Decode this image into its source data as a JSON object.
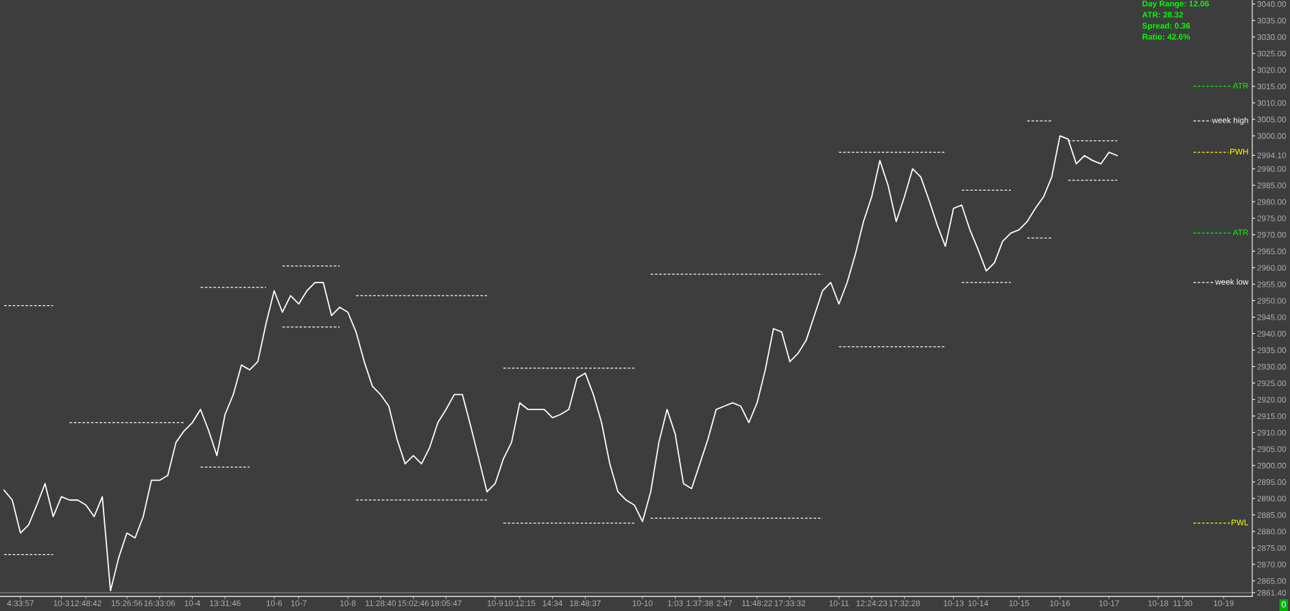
{
  "chart_data": {
    "type": "line",
    "categories": [
      null,
      null,
      "4:33:57",
      null,
      null,
      null,
      null,
      "10-3",
      null,
      null,
      "12:48:42",
      null,
      null,
      null,
      null,
      "15:26:56",
      null,
      null,
      null,
      "16:33:06",
      null,
      null,
      null,
      "10-4",
      null,
      null,
      null,
      "13:31:46",
      null,
      null,
      null,
      null,
      null,
      "10-6",
      null,
      null,
      "10-7",
      null,
      null,
      null,
      null,
      null,
      "10-8",
      null,
      null,
      null,
      "11:28:40",
      null,
      null,
      null,
      "15:02:46",
      null,
      null,
      null,
      "18:05:47",
      null,
      null,
      null,
      null,
      null,
      "10-9",
      null,
      null,
      "10:12:15",
      null,
      null,
      null,
      "14:34",
      null,
      null,
      null,
      "18:48:37",
      null,
      null,
      null,
      null,
      null,
      null,
      "10-10",
      null,
      null,
      null,
      "1:03",
      null,
      null,
      "1:37:38",
      null,
      null,
      "2:47",
      null,
      null,
      null,
      "11:48:22",
      null,
      null,
      null,
      "17:33:32",
      null,
      null,
      null,
      null,
      null,
      "10-11",
      null,
      null,
      null,
      "12:24:23",
      null,
      null,
      null,
      "17:32:28",
      null,
      null,
      null,
      null,
      null,
      "10-13",
      null,
      null,
      "10-14",
      null,
      null,
      null,
      null,
      "10-15",
      null,
      null,
      null,
      null,
      "10-16",
      null,
      null,
      null,
      null,
      null,
      "10-17",
      null,
      null,
      null,
      null,
      null,
      "10-18",
      null,
      null,
      "11:30",
      null,
      null,
      null,
      null,
      "10-19",
      null,
      null,
      null
    ],
    "series": [
      {
        "color": "#ffffff",
        "line_style": "solid",
        "values": [
          2892.5,
          2889.5,
          2879.5,
          2882,
          2888,
          2894.5,
          2884.5,
          2890.5,
          2889.5,
          2889.5,
          2888,
          2884.5,
          2890.5,
          2862,
          2872,
          2879.5,
          2878,
          2884.5,
          2895.5,
          2895.5,
          2897,
          2907,
          2910.5,
          2913,
          2917,
          2910.5,
          2903,
          2915.5,
          2921.5,
          2930.5,
          2929,
          2931.5,
          2943,
          2953,
          2946.5,
          2951.5,
          2949,
          2953,
          2955.5,
          2955.5,
          2945.5,
          2948,
          2946.5,
          2940.5,
          2931.5,
          2924,
          2921.5,
          2918,
          2908,
          2900.5,
          2903,
          2900.5,
          2905.5,
          2913,
          2917,
          2921.5,
          2921.5,
          2912,
          2902,
          2892,
          2894.5,
          2902,
          2907,
          2919,
          2917,
          2917,
          2917,
          2914.5,
          2915.5,
          2917,
          2926.5,
          2928,
          2921.5,
          2913,
          2900.5,
          2892,
          2889.5,
          2888,
          2883,
          2892,
          2907,
          2917,
          2909.5,
          2894.5,
          2893,
          2900.5,
          2908,
          2917,
          2918,
          2919,
          2918,
          2913,
          2919,
          2929,
          2941.5,
          2940.5,
          2931.5,
          2934,
          2938,
          2945.5,
          2953,
          2955.5,
          2949,
          2955.5,
          2964,
          2974,
          2981.5,
          2992.5,
          2985,
          2974,
          2981.5,
          2990,
          2987.5,
          2980.5,
          2973,
          2966.5,
          2978,
          2979,
          2971.5,
          2965.5,
          2959,
          2961.5,
          2968,
          2970.5,
          2971.5,
          2974,
          2978,
          2981.5,
          2987.5,
          3000,
          2999,
          2991.5,
          2994,
          2992.5,
          2991.5,
          2995,
          2994,
          null,
          null,
          null,
          null,
          null,
          null,
          null,
          null,
          null,
          null,
          null,
          null,
          null,
          null,
          null,
          null
        ]
      },
      {
        "color": "#ffffff",
        "line_style": "dashed",
        "values": [
          2948.5,
          2948.5,
          2948.5,
          2948.5,
          2948.5,
          2948.5,
          2948.5,
          null,
          2913,
          2913,
          2913,
          2913,
          2913,
          2913,
          2913,
          2913,
          2913,
          2913,
          2913,
          2913,
          2913,
          2913,
          2913,
          null,
          2954,
          2954,
          2954,
          2954,
          2954,
          2954,
          2954,
          2954,
          2954,
          null,
          2960.5,
          2960.5,
          2960.5,
          2960.5,
          2960.5,
          2960.5,
          2960.5,
          2960.5,
          null,
          2951.5,
          2951.5,
          2951.5,
          2951.5,
          2951.5,
          2951.5,
          2951.5,
          2951.5,
          2951.5,
          2951.5,
          2951.5,
          2951.5,
          2951.5,
          2951.5,
          2951.5,
          2951.5,
          2951.5,
          null,
          2929.5,
          2929.5,
          2929.5,
          2929.5,
          2929.5,
          2929.5,
          2929.5,
          2929.5,
          2929.5,
          2929.5,
          2929.5,
          2929.5,
          2929.5,
          2929.5,
          2929.5,
          2929.5,
          2929.5,
          null,
          2958,
          2958,
          2958,
          2958,
          2958,
          2958,
          2958,
          2958,
          2958,
          2958,
          2958,
          2958,
          2958,
          2958,
          2958,
          2958,
          2958,
          2958,
          2958,
          2958,
          2958,
          2958,
          null,
          2995,
          2995,
          2995,
          2995,
          2995,
          2995,
          2995,
          2995,
          2995,
          2995,
          2995,
          2995,
          2995,
          2995,
          null,
          2983.5,
          2983.5,
          2983.5,
          2983.5,
          2983.5,
          2983.5,
          2983.5,
          null,
          3004.5,
          3004.5,
          3004.5,
          3004.5,
          null,
          2998.5,
          2998.5,
          2998.5,
          2998.5,
          2998.5,
          2998.5,
          2998.5,
          null,
          null,
          null,
          null,
          null,
          null,
          null,
          null,
          null,
          null,
          null,
          null,
          null,
          null,
          null,
          null
        ]
      },
      {
        "color": "#ffffff",
        "line_style": "dashed",
        "values": [
          2873,
          2873,
          2873,
          2873,
          2873,
          2873,
          2873,
          null,
          null,
          null,
          null,
          null,
          null,
          null,
          null,
          null,
          null,
          null,
          null,
          null,
          null,
          null,
          null,
          null,
          2899.5,
          2899.5,
          2899.5,
          2899.5,
          2899.5,
          2899.5,
          2899.5,
          null,
          null,
          null,
          2942,
          2942,
          2942,
          2942,
          2942,
          2942,
          2942,
          2942,
          null,
          2889.5,
          2889.5,
          2889.5,
          2889.5,
          2889.5,
          2889.5,
          2889.5,
          2889.5,
          2889.5,
          2889.5,
          2889.5,
          2889.5,
          2889.5,
          2889.5,
          2889.5,
          2889.5,
          2889.5,
          null,
          2882.5,
          2882.5,
          2882.5,
          2882.5,
          2882.5,
          2882.5,
          2882.5,
          2882.5,
          2882.5,
          2882.5,
          2882.5,
          2882.5,
          2882.5,
          2882.5,
          2882.5,
          2882.5,
          2882.5,
          null,
          2884,
          2884,
          2884,
          2884,
          2884,
          2884,
          2884,
          2884,
          2884,
          2884,
          2884,
          2884,
          2884,
          2884,
          2884,
          2884,
          2884,
          2884,
          2884,
          2884,
          2884,
          2884,
          null,
          2936,
          2936,
          2936,
          2936,
          2936,
          2936,
          2936,
          2936,
          2936,
          2936,
          2936,
          2936,
          2936,
          2936,
          null,
          2955.5,
          2955.5,
          2955.5,
          2955.5,
          2955.5,
          2955.5,
          2955.5,
          null,
          2969,
          2969,
          2969,
          2969,
          null,
          2986.5,
          2986.5,
          2986.5,
          2986.5,
          2986.5,
          2986.5,
          2986.5,
          null,
          null,
          null,
          null,
          null,
          null,
          null,
          null,
          null,
          null,
          null,
          null,
          null,
          null,
          null,
          null
        ]
      }
    ],
    "ylim": [
      2860.3,
      3041.2
    ],
    "yticks": [
      {
        "value": 2861.4,
        "label": "2861.40"
      },
      {
        "value": 2865,
        "label": "2865.00"
      },
      {
        "value": 2870,
        "label": "2870.00"
      },
      {
        "value": 2875,
        "label": "2875.00"
      },
      {
        "value": 2880,
        "label": "2880.00"
      },
      {
        "value": 2885,
        "label": "2885.00"
      },
      {
        "value": 2890,
        "label": "2890.00"
      },
      {
        "value": 2895,
        "label": "2895.00"
      },
      {
        "value": 2900,
        "label": "2900.00"
      },
      {
        "value": 2905,
        "label": "2905.00"
      },
      {
        "value": 2910,
        "label": "2910.00"
      },
      {
        "value": 2915,
        "label": "2915.00"
      },
      {
        "value": 2920,
        "label": "2920.00"
      },
      {
        "value": 2925,
        "label": "2925.00"
      },
      {
        "value": 2930,
        "label": "2930.00"
      },
      {
        "value": 2935,
        "label": "2935.00"
      },
      {
        "value": 2940,
        "label": "2940.00"
      },
      {
        "value": 2945,
        "label": "2945.00"
      },
      {
        "value": 2950,
        "label": "2950.00"
      },
      {
        "value": 2955,
        "label": "2955.00"
      },
      {
        "value": 2960,
        "label": "2960.00"
      },
      {
        "value": 2965,
        "label": "2965.00"
      },
      {
        "value": 2970,
        "label": "2970.00"
      },
      {
        "value": 2975,
        "label": "2975.00"
      },
      {
        "value": 2980,
        "label": "2980.00"
      },
      {
        "value": 2985,
        "label": "2985.00"
      },
      {
        "value": 2990,
        "label": "2990.00"
      },
      {
        "value": 2994.1,
        "label": "2994.10"
      },
      {
        "value": 3000,
        "label": "3000.00"
      },
      {
        "value": 3005,
        "label": "3005.00"
      },
      {
        "value": 3010,
        "label": "3010.00"
      },
      {
        "value": 3015,
        "label": "3015.00"
      },
      {
        "value": 3020,
        "label": "3020.00"
      },
      {
        "value": 3025,
        "label": "3025.00"
      },
      {
        "value": 3030,
        "label": "3030.00"
      },
      {
        "value": 3035,
        "label": "3035.00"
      },
      {
        "value": 3040,
        "label": "3040.00"
      }
    ],
    "ref_lines": [
      {
        "axis": "y",
        "value": 3015,
        "label": "ATR",
        "color": "#00ff00",
        "line_style": "dashed"
      },
      {
        "axis": "y",
        "value": 3004.5,
        "label": "week high",
        "color": "#ffffff",
        "line_style": "dashed"
      },
      {
        "axis": "y",
        "value": 2995,
        "label": "PWH",
        "color": "#ffff00",
        "line_style": "dashed"
      },
      {
        "axis": "y",
        "value": 2970.5,
        "label": "ATR",
        "color": "#00ff00",
        "line_style": "dashed"
      },
      {
        "axis": "y",
        "value": 2955.5,
        "label": "week low",
        "color": "#ffffff",
        "line_style": "dashed"
      },
      {
        "axis": "y",
        "value": 2882.5,
        "label": "PWL",
        "color": "#ffff00",
        "line_style": "dashed"
      },
      {
        "axis": "y",
        "value": 2861.4,
        "color": "#808080",
        "line_style": "solid"
      }
    ],
    "annotations": [
      "Day Range: 12.06",
      "ATR: 28.32",
      "Spread: 0.36",
      "Ratio: 42.6%",
      "0"
    ],
    "grid": false,
    "legend": false
  }
}
